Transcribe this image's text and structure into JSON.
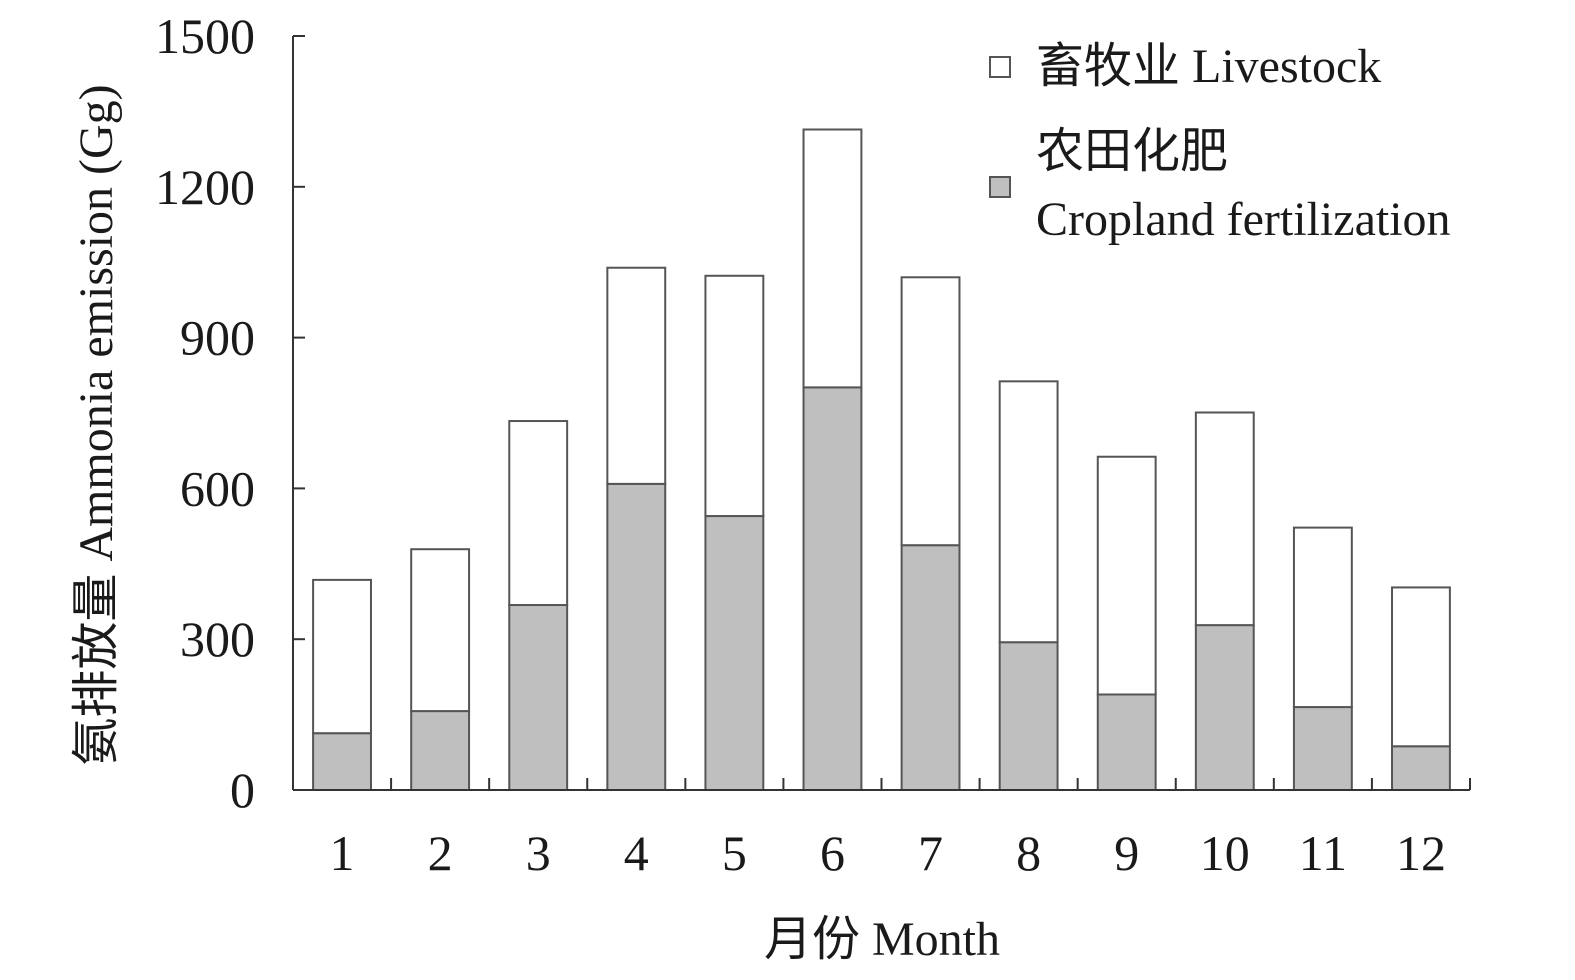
{
  "chart_data": {
    "type": "bar",
    "stacked": true,
    "categories": [
      "1",
      "2",
      "3",
      "4",
      "5",
      "6",
      "7",
      "8",
      "9",
      "10",
      "11",
      "12"
    ],
    "series": [
      {
        "name": "农田化肥 Cropland fertilization",
        "name_lines": [
          "农田化肥",
          "Cropland fertilization"
        ],
        "color": "#bfbfbf",
        "values": [
          113,
          157,
          368,
          609,
          545,
          801,
          487,
          294,
          190,
          328,
          165,
          87
        ]
      },
      {
        "name": "畜牧业 Livestock",
        "name_lines": [
          "畜牧业 Livestock"
        ],
        "color": "#ffffff",
        "values": [
          305,
          322,
          366,
          430,
          478,
          513,
          533,
          519,
          473,
          423,
          357,
          316
        ]
      }
    ],
    "xlabel": "月份 Month",
    "ylabel": "氨排放量 Ammonia emission (Gg)",
    "ylim": [
      0,
      1500
    ],
    "yticks": [
      0,
      300,
      600,
      900,
      1200,
      1500
    ],
    "grid": false,
    "legend": "top-right"
  }
}
